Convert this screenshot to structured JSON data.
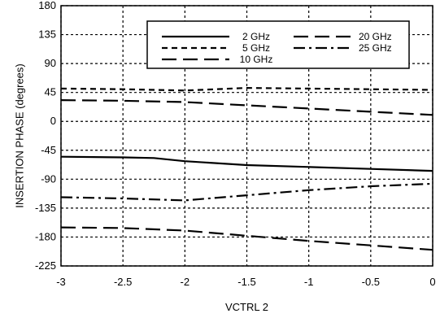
{
  "chart_data": {
    "type": "line",
    "xlabel": "VCTRL 2",
    "ylabel": "INSERTION PHASE (degrees)",
    "xlim": [
      -3,
      0
    ],
    "ylim": [
      -225,
      180
    ],
    "xticks": [
      "-3",
      "-2.5",
      "-2",
      "-1.5",
      "-1",
      "-0.5",
      "0"
    ],
    "yticks": [
      "180",
      "135",
      "90",
      "45",
      "0",
      "-45",
      "-90",
      "-135",
      "-180",
      "-225"
    ],
    "grid": true,
    "legend_position": "top-right",
    "series": [
      {
        "name": "2 GHz",
        "dash": "solid",
        "x": [
          -3,
          -2.5,
          -2.25,
          -2,
          -1.5,
          -1,
          -0.5,
          0
        ],
        "y": [
          -55,
          -56,
          -57,
          -62,
          -68,
          -71,
          -74,
          -77
        ]
      },
      {
        "name": "5 GHz",
        "dash": "short-dash",
        "x": [
          -3,
          -2.5,
          -2,
          -1.5,
          -1,
          -0.5,
          0
        ],
        "y": [
          51,
          50,
          48,
          52,
          51,
          50,
          49
        ]
      },
      {
        "name": "10 GHz",
        "dash": "long-dash",
        "x": [
          -3,
          -2.5,
          -2,
          -1.5,
          -1,
          -0.5,
          0
        ],
        "y": [
          33,
          32,
          30,
          25,
          20,
          15,
          10
        ]
      },
      {
        "name": "20 GHz",
        "dash": "long-dash",
        "x": [
          -3,
          -2.5,
          -2,
          -1.5,
          -1,
          -0.5,
          0
        ],
        "y": [
          -165,
          -166,
          -170,
          -178,
          -186,
          -193,
          -200
        ]
      },
      {
        "name": "25 GHz",
        "dash": "dash-dot",
        "x": [
          -3,
          -2.5,
          -2,
          -1.5,
          -1,
          -0.5,
          0
        ],
        "y": [
          -118,
          -120,
          -123,
          -115,
          -107,
          -101,
          -97
        ]
      }
    ]
  }
}
